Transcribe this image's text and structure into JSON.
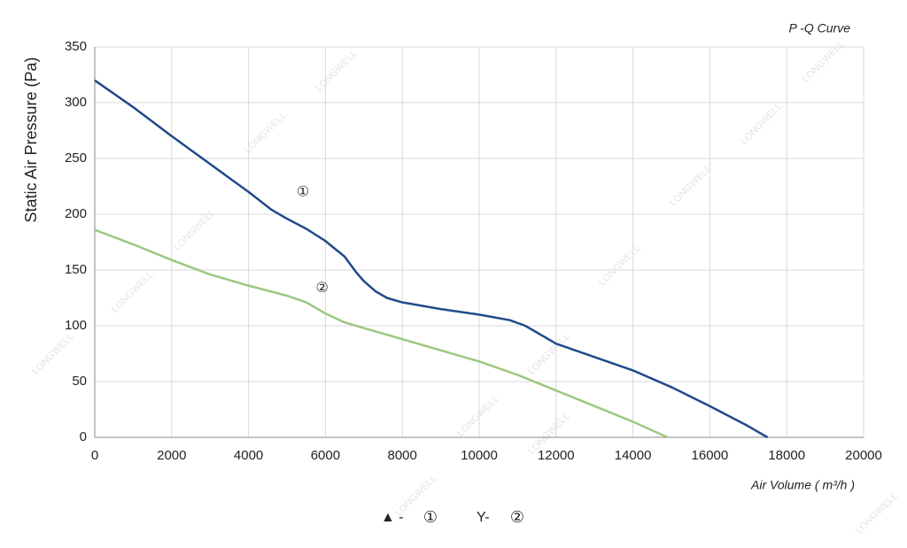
{
  "chart_data": {
    "type": "line",
    "title": "P -Q Curve",
    "x_label": "Air Volume ( m³/h )",
    "y_label": "Static Air Pressure  (Pa)",
    "watermark": "LONGWELL",
    "series": [
      {
        "name": "①",
        "legend_symbol": "▲ -",
        "color": "#1f4a8a",
        "x": [
          0,
          1000,
          2000,
          3000,
          4000,
          4600,
          5000,
          5500,
          6000,
          6500,
          6800,
          7000,
          7300,
          7600,
          8000,
          9000,
          10000,
          10800,
          11200,
          12000,
          13000,
          14000,
          15000,
          16000,
          17000,
          17500
        ],
        "values": [
          320,
          296,
          270,
          245,
          220,
          204,
          196,
          187,
          176,
          162,
          148,
          140,
          131,
          125,
          121,
          115,
          110,
          105,
          100,
          84,
          72,
          60,
          45,
          28,
          10,
          0
        ]
      },
      {
        "name": "②",
        "legend_symbol": "Y-",
        "color": "#9dc880",
        "x": [
          0,
          1000,
          2000,
          3000,
          4000,
          5000,
          5500,
          6000,
          6500,
          7000,
          8000,
          9000,
          10000,
          11000,
          12000,
          13000,
          14000,
          14900
        ],
        "values": [
          186,
          173,
          159,
          146,
          136,
          127,
          121,
          111,
          103,
          98,
          88,
          78,
          68,
          56,
          42,
          28,
          14,
          0
        ]
      }
    ],
    "xlim": [
      0,
      20000
    ],
    "xticks": [
      0,
      2000,
      4000,
      6000,
      8000,
      10000,
      12000,
      14000,
      16000,
      18000,
      20000
    ],
    "ylim": [
      0,
      350
    ],
    "yticks": [
      0,
      50,
      100,
      150,
      200,
      250,
      300,
      350
    ],
    "grid": true
  }
}
